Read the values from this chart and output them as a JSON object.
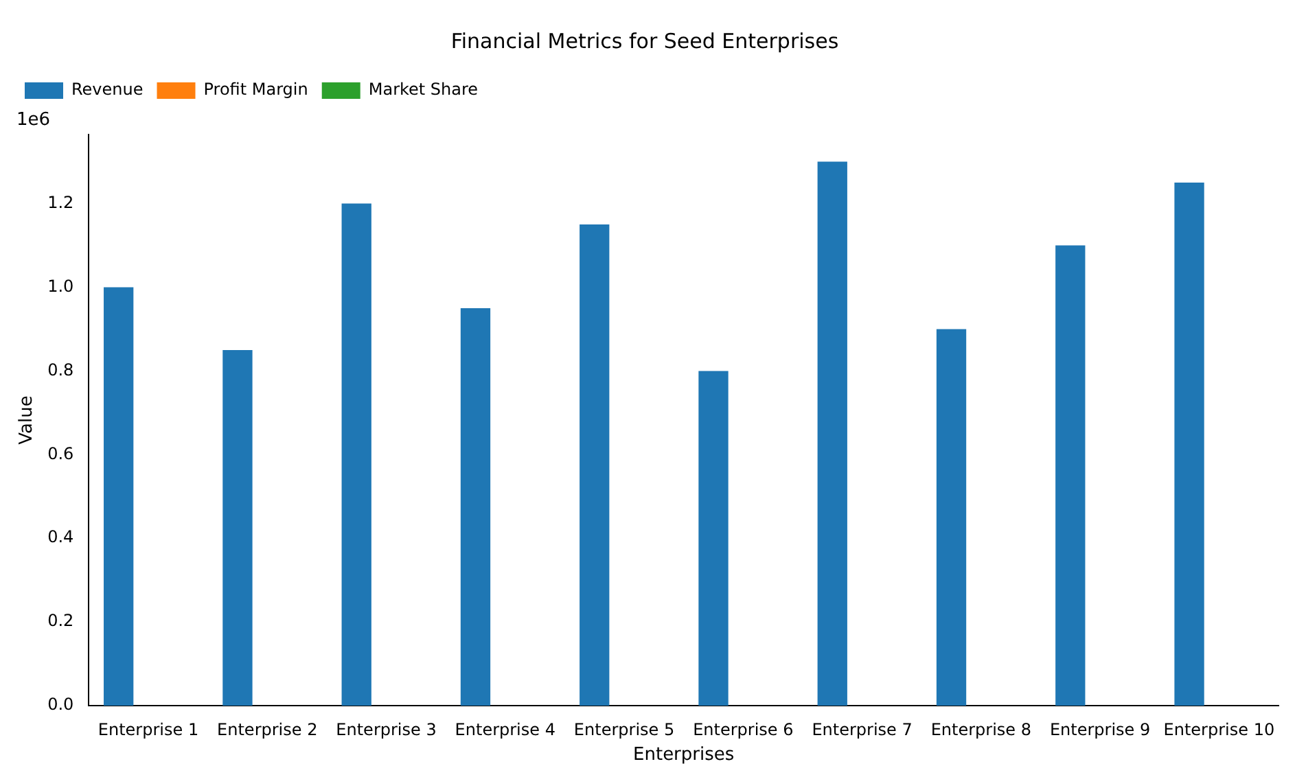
{
  "chart_data": {
    "type": "bar",
    "title": "Financial Metrics for Seed Enterprises",
    "xlabel": "Enterprises",
    "ylabel": "Value",
    "annotations": [
      "1e6"
    ],
    "categories": [
      "Enterprise 1",
      "Enterprise 2",
      "Enterprise 3",
      "Enterprise 4",
      "Enterprise 5",
      "Enterprise 6",
      "Enterprise 7",
      "Enterprise 8",
      "Enterprise 9",
      "Enterprise 10"
    ],
    "series": [
      {
        "name": "Revenue",
        "color": "#1f77b4",
        "values": [
          1.0,
          0.85,
          1.2,
          0.95,
          1.15,
          0.8,
          1.3,
          0.9,
          1.1,
          1.25
        ]
      },
      {
        "name": "Profit Margin",
        "color": "#ff7f0e",
        "values": [
          0,
          0,
          0,
          0,
          0,
          0,
          0,
          0,
          0,
          0
        ]
      },
      {
        "name": "Market Share",
        "color": "#2ca02c",
        "values": [
          0,
          0,
          0,
          0,
          0,
          0,
          0,
          0,
          0,
          0
        ]
      }
    ],
    "ylim": [
      0,
      1.365
    ],
    "yticks": [
      {
        "value": 0,
        "label": "0.0"
      },
      {
        "value": 0.2,
        "label": "0.2"
      },
      {
        "value": 0.4,
        "label": "0.4"
      },
      {
        "value": 0.6,
        "label": "0.6"
      },
      {
        "value": 0.8,
        "label": "0.8"
      },
      {
        "value": 1,
        "label": "1.0"
      },
      {
        "value": 1.2,
        "label": "1.2"
      }
    ],
    "grid": false,
    "legend": "top left"
  }
}
